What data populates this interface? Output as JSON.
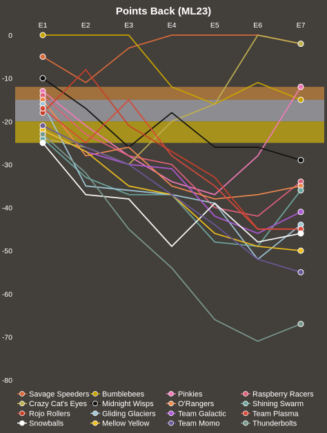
{
  "chart_data": {
    "type": "line",
    "title": "Points Back (ML23)",
    "xlabel": "",
    "ylabel": "",
    "x": [
      "E1",
      "E2",
      "E3",
      "E4",
      "E5",
      "E6",
      "E7"
    ],
    "x_axis_position": "top",
    "yticks": [
      0,
      -10,
      -20,
      -30,
      -40,
      -50,
      -60,
      -70,
      -80
    ],
    "ylim": [
      -80,
      0
    ],
    "grid": false,
    "legend_position": "bottom",
    "bands": [
      {
        "from": -12,
        "to": -15,
        "color": "#b07a3e"
      },
      {
        "from": -15,
        "to": -20,
        "color": "#9a9aa0"
      },
      {
        "from": -20,
        "to": -25,
        "color": "#b6a018"
      }
    ],
    "series": [
      {
        "name": "Savage Speeders",
        "color": "#d96a3a",
        "values": [
          -5,
          -11,
          -3,
          0,
          0,
          0,
          -2
        ]
      },
      {
        "name": "Bumblebees",
        "color": "#c8a400",
        "values": [
          0,
          0,
          0,
          -12,
          -16,
          -11,
          -15
        ]
      },
      {
        "name": "Pinkies",
        "color": "#f07ab8",
        "values": [
          -13,
          -21,
          -28,
          -34,
          -37,
          -28,
          -12
        ]
      },
      {
        "name": "Raspberry Racers",
        "color": "#e0607a",
        "values": [
          -14,
          -23,
          -28,
          -30,
          -40,
          -42,
          -34
        ]
      },
      {
        "name": "Crazy Cat's Eyes",
        "color": "#c0b050",
        "values": [
          -24,
          -26,
          -30,
          -20,
          -16,
          0,
          -2
        ]
      },
      {
        "name": "Midnight Wisps",
        "color": "#111111",
        "values": [
          -10,
          -17,
          -26,
          -18,
          -26,
          -26,
          -29
        ]
      },
      {
        "name": "O'Rangers",
        "color": "#f08a50",
        "values": [
          -15,
          -28,
          -26,
          -35,
          -38,
          -37,
          -35
        ]
      },
      {
        "name": "Shining Swarm",
        "color": "#6fa8a0",
        "values": [
          -24,
          -33,
          -37,
          -37,
          -48,
          -49,
          -36
        ]
      },
      {
        "name": "Rojo Rollers",
        "color": "#c8402a",
        "values": [
          -18,
          -8,
          -21,
          -27,
          -33,
          -45,
          -45
        ]
      },
      {
        "name": "Gliding Glaciers",
        "color": "#a0c8d8",
        "values": [
          -16,
          -35,
          -36,
          -37,
          -39,
          -52,
          -44
        ]
      },
      {
        "name": "Team Galactic",
        "color": "#b05ad8",
        "values": [
          -22,
          -27,
          -30,
          -31,
          -42,
          -46,
          -41
        ]
      },
      {
        "name": "Team Plasma",
        "color": "#d84a3a",
        "values": [
          -17,
          -25,
          -15,
          -28,
          -35,
          -45,
          -45
        ]
      },
      {
        "name": "Snowballs",
        "color": "#ffffff",
        "values": [
          -25,
          -37,
          -38,
          -49,
          -39,
          -48,
          -46
        ]
      },
      {
        "name": "Mellow Yellow",
        "color": "#f0c020",
        "values": [
          -22,
          -27,
          -35,
          -37,
          -46,
          -49,
          -50
        ]
      },
      {
        "name": "Team Momo",
        "color": "#6a5a9a",
        "values": [
          -21,
          -26,
          -30,
          -37,
          -44,
          -52,
          -55
        ]
      },
      {
        "name": "Thunderbolts",
        "color": "#7a9a90",
        "values": [
          -23,
          -32,
          -45,
          -54,
          -66,
          -71,
          -67
        ]
      }
    ]
  }
}
